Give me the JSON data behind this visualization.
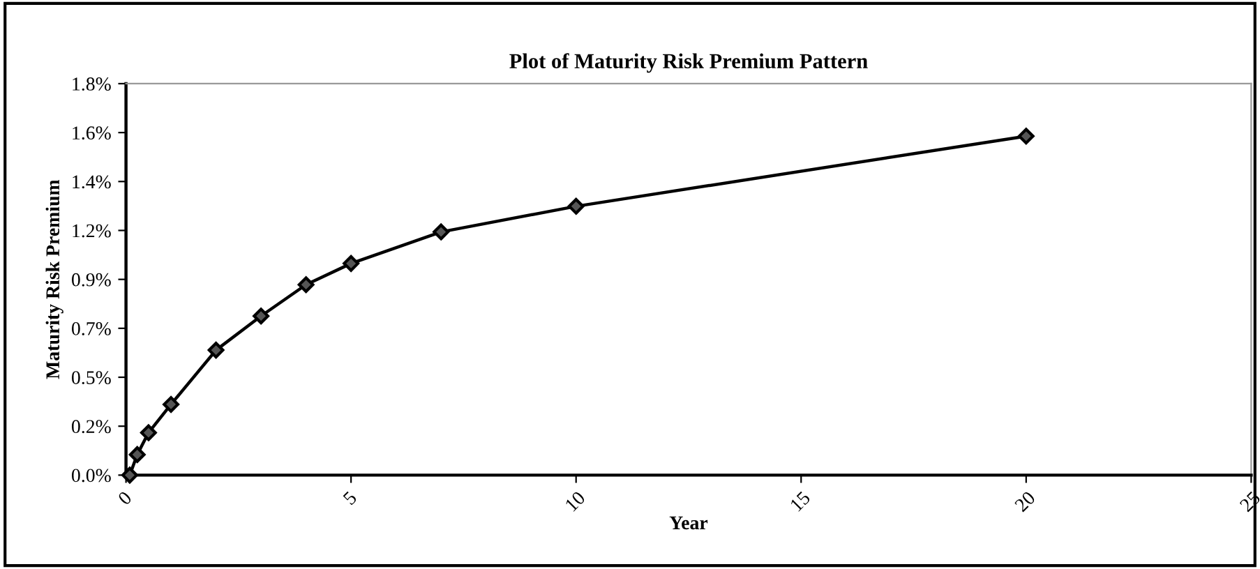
{
  "chart_data": {
    "type": "line",
    "title": "Plot of Maturity Risk Premium Pattern",
    "xlabel": "Year",
    "ylabel": "Maturity Risk Premium",
    "series": [
      {
        "color": "#000000",
        "x": [
          0.083,
          0.25,
          0.5,
          1,
          2,
          3,
          4,
          5,
          7,
          10,
          20
        ],
        "values": [
          0.0,
          0.097,
          0.2,
          0.334,
          0.59,
          0.751,
          0.899,
          0.999,
          1.148,
          1.269,
          1.6
        ]
      }
    ],
    "xlim": [
      0,
      25
    ],
    "xticks": [
      0,
      5,
      10,
      15,
      20,
      25
    ],
    "ylim": [
      0,
      1.848
    ],
    "yticks": [
      {
        "value": 0,
        "label": "0.0%"
      },
      {
        "value": 0.231,
        "label": "0.2%"
      },
      {
        "value": 0.462,
        "label": "0.5%"
      },
      {
        "value": 0.693,
        "label": "0.7%"
      },
      {
        "value": 0.924,
        "label": "0.9%"
      },
      {
        "value": 1.155,
        "label": "1.2%"
      },
      {
        "value": 1.386,
        "label": "1.4%"
      },
      {
        "value": 1.617,
        "label": "1.6%"
      },
      {
        "value": 1.848,
        "label": "1.8%"
      }
    ],
    "marker": "diamond",
    "line_style": "solid"
  }
}
